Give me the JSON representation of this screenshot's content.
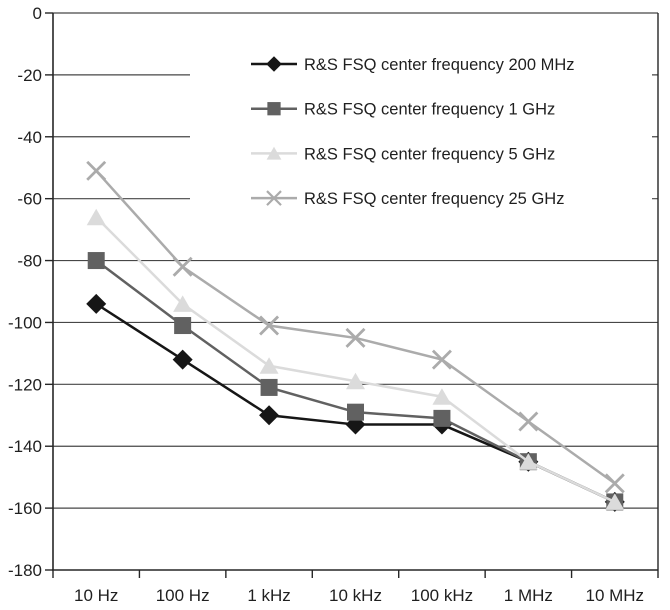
{
  "chart_data": {
    "type": "line",
    "categories": [
      "10 Hz",
      "100 Hz",
      "1 kHz",
      "10 kHz",
      "100 kHz",
      "1 MHz",
      "10 MHz"
    ],
    "series": [
      {
        "name": "R&S FSQ center frequency 200 MHz",
        "marker": "diamond",
        "color": "#161616",
        "values": [
          -94,
          -112,
          -130,
          -133,
          -133,
          -145,
          -158
        ]
      },
      {
        "name": "R&S FSQ center frequency 1 GHz",
        "marker": "square",
        "color": "#616161",
        "values": [
          -80,
          -101,
          -121,
          -129,
          -131,
          -145,
          -158
        ]
      },
      {
        "name": "R&S FSQ center frequency 5 GHz",
        "marker": "triangle",
        "color": "#dbdbdb",
        "values": [
          -66,
          -94,
          -114,
          -119,
          -124,
          -145,
          -158
        ]
      },
      {
        "name": "R&S FSQ center frequency 25 GHz",
        "marker": "x",
        "color": "#ababab",
        "values": [
          -51,
          -82,
          -101,
          -105,
          -112,
          -132,
          -152
        ]
      }
    ],
    "y_axis": {
      "min": -180,
      "max": 0,
      "tick_step": 20,
      "tick_labels": [
        "0",
        "-20",
        "-40",
        "-60",
        "-80",
        "-100",
        "-120",
        "-140",
        "-160",
        "-180"
      ]
    },
    "grid": "horizontal-only",
    "legend_position": "inside-top-right",
    "colors": {
      "background": "#ffffff",
      "grid_line": "#474747",
      "axis_line": "#262626",
      "text": "#1f1f1f"
    }
  }
}
